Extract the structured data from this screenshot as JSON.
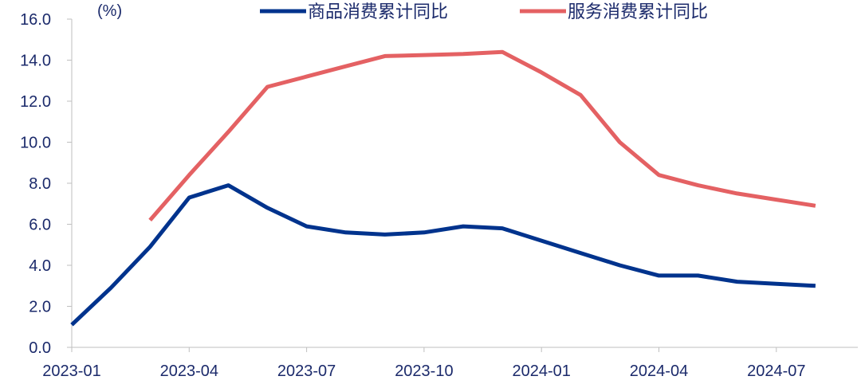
{
  "chart_data": {
    "type": "line",
    "title": "",
    "unit_label": "(%)",
    "xlabel": "",
    "ylabel": "",
    "ylim": [
      0,
      16
    ],
    "yticks": [
      "0.0",
      "2.0",
      "4.0",
      "6.0",
      "8.0",
      "10.0",
      "12.0",
      "14.0",
      "16.0"
    ],
    "x": [
      "2023-01",
      "2023-02",
      "2023-03",
      "2023-04",
      "2023-05",
      "2023-06",
      "2023-07",
      "2023-08",
      "2023-09",
      "2023-10",
      "2023-11",
      "2023-12",
      "2024-01",
      "2024-02",
      "2024-03",
      "2024-04",
      "2024-05",
      "2024-06",
      "2024-07",
      "2024-08"
    ],
    "xtick_labels": [
      "2023-01",
      "2023-04",
      "2023-07",
      "2023-10",
      "2024-01",
      "2024-04",
      "2024-07"
    ],
    "legend_position": "top",
    "grid": false,
    "series": [
      {
        "name": "商品消费累计同比",
        "color": "#00338d",
        "values": [
          1.1,
          2.9,
          4.9,
          7.3,
          7.9,
          6.8,
          5.9,
          5.6,
          5.5,
          5.6,
          5.9,
          5.8,
          5.2,
          4.6,
          4.0,
          3.5,
          3.5,
          3.2,
          3.1,
          3.0
        ]
      },
      {
        "name": "服务消费累计同比",
        "color": "#e46163",
        "values": [
          null,
          null,
          6.2,
          8.4,
          10.5,
          12.7,
          13.2,
          13.7,
          14.2,
          14.25,
          14.3,
          14.4,
          13.4,
          12.3,
          10.0,
          8.4,
          7.9,
          7.5,
          7.2,
          6.9
        ]
      }
    ]
  }
}
